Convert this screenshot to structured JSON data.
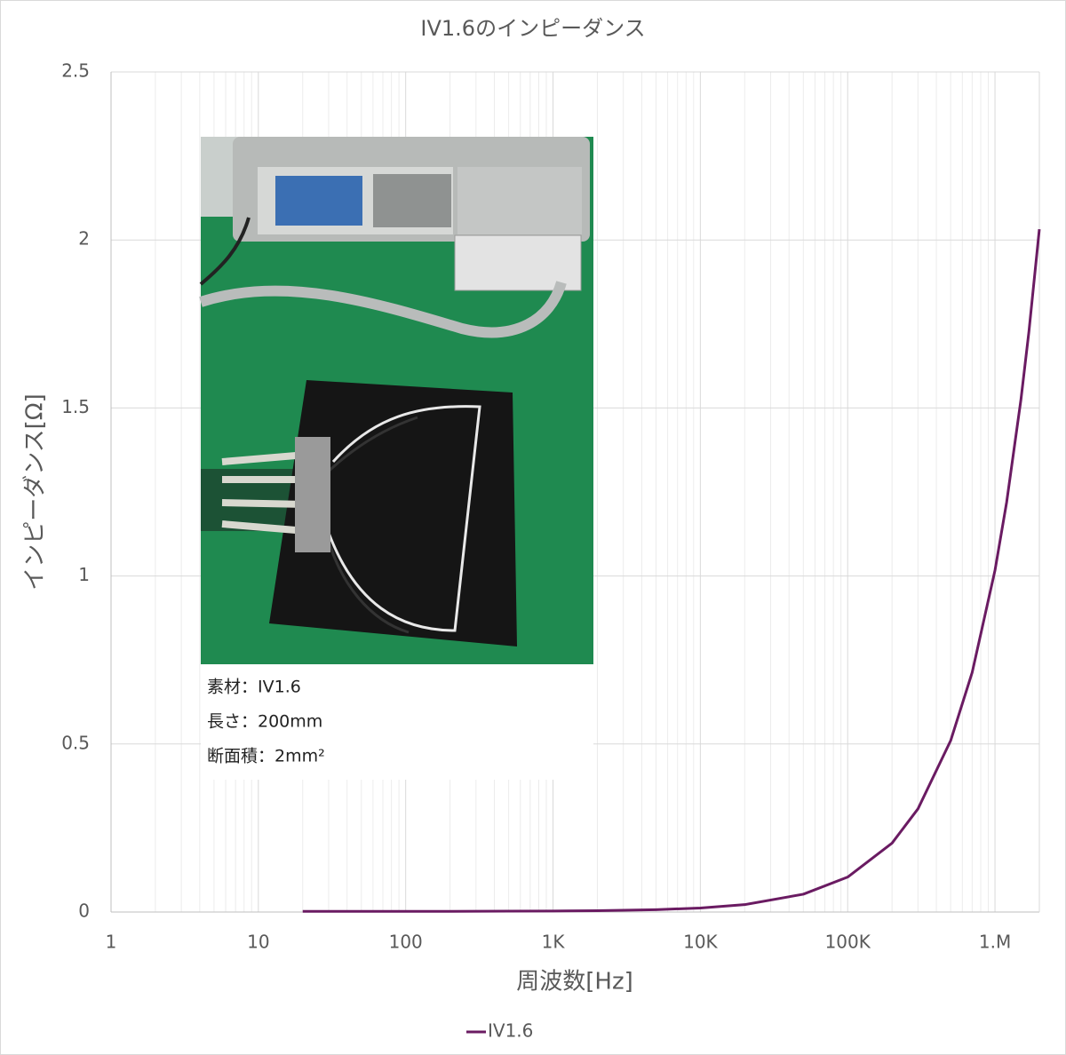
{
  "chart_data": {
    "type": "line",
    "title": "IV1.6のインピーダンス",
    "x_label": "周波数[Hz]",
    "y_label": "インピーダンス[Ω]",
    "x": [
      20,
      50,
      100,
      200,
      500,
      1000,
      2000,
      5000,
      10000,
      20000,
      50000,
      100000,
      200000,
      300000,
      500000,
      700000,
      1000000,
      1200000,
      1500000,
      1700000,
      2000000
    ],
    "series": [
      {
        "name": "IV1.6",
        "color": "#6a1b62",
        "values": [
          0.002,
          0.002,
          0.002,
          0.002,
          0.0025,
          0.003,
          0.004,
          0.007,
          0.012,
          0.022,
          0.053,
          0.104,
          0.205,
          0.307,
          0.51,
          0.713,
          1.017,
          1.22,
          1.525,
          1.728,
          2.032
        ]
      }
    ],
    "xscale": "log",
    "xlim": [
      1,
      2000000
    ],
    "xticks": [
      1,
      10,
      100,
      {
        "value": 1000,
        "label": "1K"
      },
      {
        "value": 10000,
        "label": "10K"
      },
      {
        "value": 100000,
        "label": "100K"
      },
      {
        "value": 1000000,
        "label": "1.M"
      }
    ],
    "ylim": [
      0,
      2.5
    ],
    "yticks": [
      0,
      0.5,
      1,
      1.5,
      2,
      2.5
    ],
    "grid": true,
    "legend": "bottom",
    "annotations": [
      "素材：IV1.6",
      "長さ：200mm",
      "断面積：2mm²"
    ]
  }
}
